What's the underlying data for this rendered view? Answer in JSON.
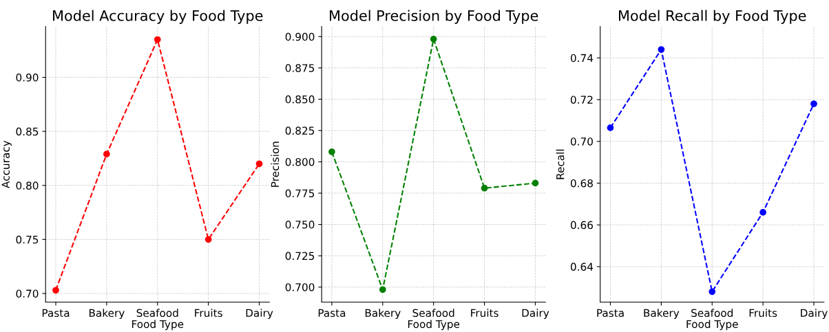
{
  "chart_data": [
    {
      "type": "line",
      "title": "Model Accuracy by Food Type",
      "xlabel": "Food Type",
      "ylabel": "Accuracy",
      "categories": [
        "Pasta",
        "Bakery",
        "Seafood",
        "Fruits",
        "Dairy"
      ],
      "series": [
        {
          "color": "#ff0000",
          "values": [
            0.703,
            0.829,
            0.935,
            0.75,
            0.82
          ]
        }
      ],
      "ylim": [
        0.692,
        0.947
      ],
      "yticks": [
        {
          "value": 0.7,
          "label": "0.70"
        },
        {
          "value": 0.75,
          "label": "0.75"
        },
        {
          "value": 0.8,
          "label": "0.80"
        },
        {
          "value": 0.85,
          "label": "0.85"
        },
        {
          "value": 0.9,
          "label": "0.90"
        }
      ],
      "grid": true,
      "marker": "circle",
      "line_style": "dashed"
    },
    {
      "type": "line",
      "title": "Model Precision by Food Type",
      "xlabel": "Food Type",
      "ylabel": "Precision",
      "categories": [
        "Pasta",
        "Bakery",
        "Seafood",
        "Fruits",
        "Dairy"
      ],
      "series": [
        {
          "color": "#008000",
          "values": [
            0.808,
            0.698,
            0.898,
            0.779,
            0.783
          ]
        }
      ],
      "ylim": [
        0.688,
        0.908
      ],
      "yticks": [
        {
          "value": 0.7,
          "label": "0.700"
        },
        {
          "value": 0.725,
          "label": "0.725"
        },
        {
          "value": 0.75,
          "label": "0.750"
        },
        {
          "value": 0.775,
          "label": "0.775"
        },
        {
          "value": 0.8,
          "label": "0.800"
        },
        {
          "value": 0.825,
          "label": "0.825"
        },
        {
          "value": 0.85,
          "label": "0.850"
        },
        {
          "value": 0.875,
          "label": "0.875"
        },
        {
          "value": 0.9,
          "label": "0.900"
        }
      ],
      "grid": true,
      "marker": "circle",
      "line_style": "dashed"
    },
    {
      "type": "line",
      "title": "Model Recall by Food Type",
      "xlabel": "Food Type",
      "ylabel": "Recall",
      "categories": [
        "Pasta",
        "Bakery",
        "Seafood",
        "Fruits",
        "Dairy"
      ],
      "series": [
        {
          "color": "#0000ff",
          "values": [
            0.7065,
            0.744,
            0.628,
            0.666,
            0.718
          ]
        }
      ],
      "ylim": [
        0.623,
        0.755
      ],
      "yticks": [
        0.64,
        0.66,
        0.68,
        {
          "value": 0.7,
          "label": "0.70"
        },
        0.72,
        0.74
      ],
      "grid": true,
      "marker": "circle",
      "line_style": "dashed"
    }
  ]
}
